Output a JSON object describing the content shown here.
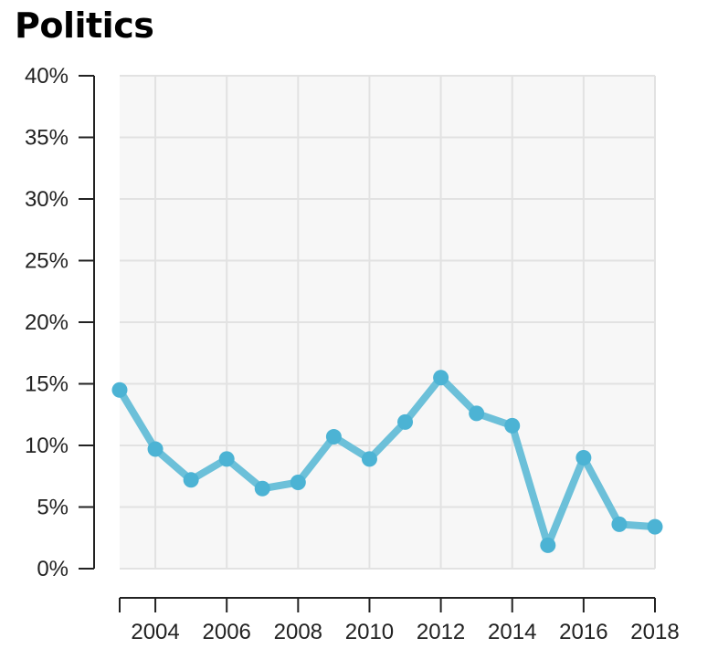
{
  "chart_data": {
    "type": "line",
    "title": "Politics",
    "xlabel": "",
    "ylabel": "",
    "x": [
      2003,
      2004,
      2005,
      2006,
      2007,
      2008,
      2009,
      2010,
      2011,
      2012,
      2013,
      2014,
      2015,
      2016,
      2017,
      2018
    ],
    "series": [
      {
        "values": [
          14.5,
          9.7,
          7.2,
          8.9,
          6.5,
          7.0,
          10.7,
          8.9,
          11.9,
          15.5,
          12.6,
          11.6,
          1.9,
          9.0,
          3.6,
          3.4
        ]
      }
    ],
    "xlim": [
      2003,
      2018
    ],
    "ylim": [
      0,
      40
    ],
    "x_ticks": [
      2004,
      2006,
      2008,
      2010,
      2012,
      2014,
      2016,
      2018
    ],
    "x_tick_labels": [
      "2004",
      "2006",
      "2008",
      "2010",
      "2012",
      "2014",
      "2016",
      "2018"
    ],
    "y_ticks": [
      0,
      5,
      10,
      15,
      20,
      25,
      30,
      35,
      40
    ],
    "y_tick_labels": [
      "0%",
      "5%",
      "10%",
      "15%",
      "20%",
      "25%",
      "30%",
      "35%",
      "40%"
    ],
    "grid": true,
    "legend": "none",
    "colors": {
      "line": "#6cc0d9",
      "point": "#4cb3d4",
      "plot_background": "#f7f7f7",
      "grid": "#e2e2e2",
      "axis": "#222222"
    }
  }
}
